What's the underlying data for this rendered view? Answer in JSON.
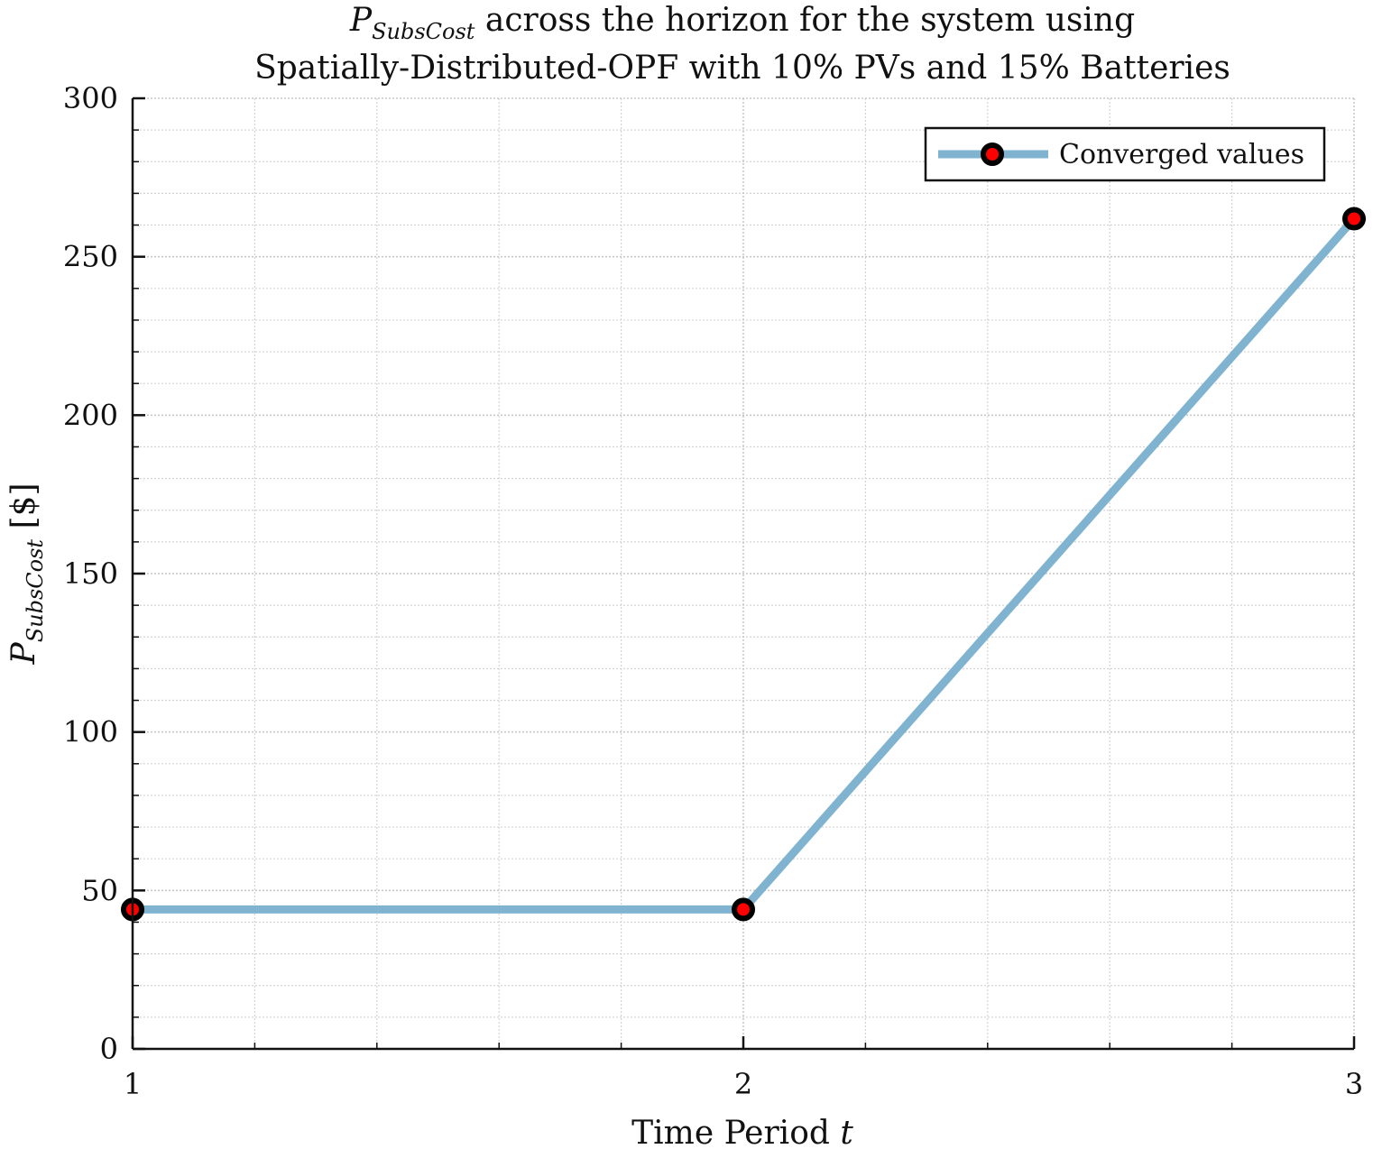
{
  "chart_data": {
    "type": "line",
    "title_lines": [
      {
        "main": "P",
        "sub": "SubsCost",
        "rest": " across the horizon for the system using"
      },
      {
        "text": "Spatially-Distributed-OPF with 10% PVs and 15% Batteries"
      }
    ],
    "xlabel": {
      "text": "Time Period ",
      "var": "t"
    },
    "ylabel": {
      "main": "P",
      "sub": "SubsCost",
      "rest": " [$]"
    },
    "x_ticks": [
      1,
      2,
      3
    ],
    "y_ticks": [
      0,
      50,
      100,
      150,
      200,
      250,
      300
    ],
    "xlim": [
      1,
      3
    ],
    "ylim": [
      0,
      300
    ],
    "grid": true,
    "minor_grid": true,
    "legend_position": "top-right",
    "series": [
      {
        "name": "Converged values",
        "x": [
          1,
          2,
          3
        ],
        "y": [
          44,
          44,
          262
        ],
        "line_color": "#7fb3d0",
        "marker_edge_color": "#000000",
        "marker_face_color": "#ff0000"
      }
    ]
  }
}
